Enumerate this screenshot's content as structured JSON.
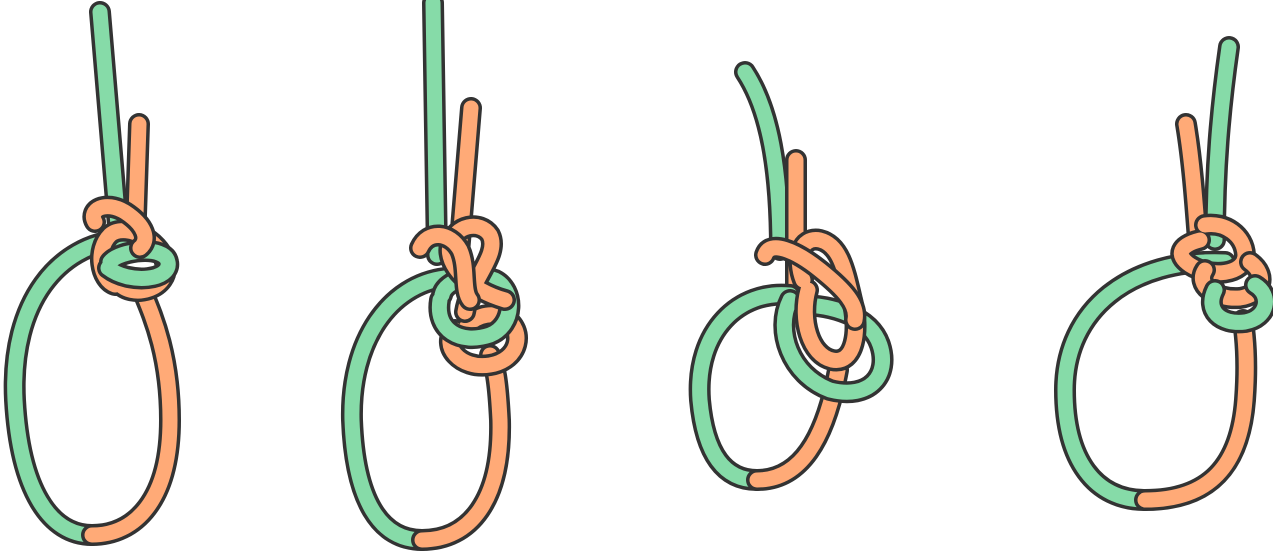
{
  "illustration": {
    "type": "knot-diagram",
    "panel_count": 4,
    "colors": {
      "rope_a": "#86dba8",
      "rope_b": "#ffaa77",
      "outline": "#333333",
      "background": "#ffffff"
    },
    "panels": [
      {
        "id": "knot-1"
      },
      {
        "id": "knot-2"
      },
      {
        "id": "knot-3"
      },
      {
        "id": "knot-4"
      }
    ]
  }
}
